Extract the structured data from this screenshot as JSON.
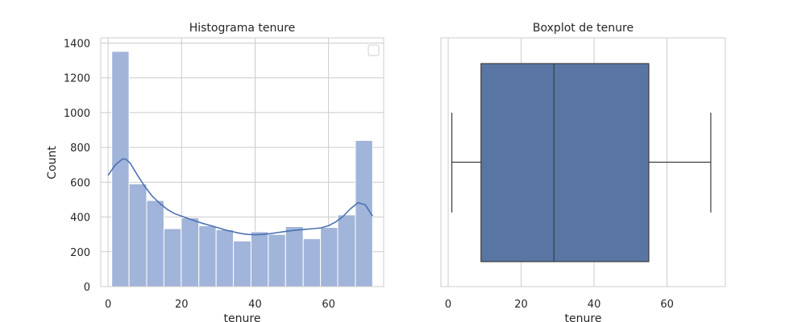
{
  "chart_data": [
    {
      "type": "bar",
      "title": "Histograma tenure",
      "xlabel": "tenure",
      "ylabel": "Count",
      "xlim": [
        -2,
        75
      ],
      "ylim": [
        0,
        1430
      ],
      "xticks": [
        0,
        20,
        40,
        60
      ],
      "yticks": [
        0,
        200,
        400,
        600,
        800,
        1000,
        1200,
        1400
      ],
      "grid": true,
      "legend": "top-right",
      "bins": [
        {
          "x0": 1.0,
          "x1": 5.7,
          "count": 1352
        },
        {
          "x0": 5.7,
          "x1": 10.5,
          "count": 590
        },
        {
          "x0": 10.5,
          "x1": 15.2,
          "count": 495
        },
        {
          "x0": 15.2,
          "x1": 19.9,
          "count": 333
        },
        {
          "x0": 19.9,
          "x1": 24.7,
          "count": 395
        },
        {
          "x0": 24.7,
          "x1": 29.4,
          "count": 350
        },
        {
          "x0": 29.4,
          "x1": 34.1,
          "count": 327
        },
        {
          "x0": 34.1,
          "x1": 38.9,
          "count": 262
        },
        {
          "x0": 38.9,
          "x1": 43.6,
          "count": 315
        },
        {
          "x0": 43.6,
          "x1": 48.3,
          "count": 300
        },
        {
          "x0": 48.3,
          "x1": 53.1,
          "count": 345
        },
        {
          "x0": 53.1,
          "x1": 57.8,
          "count": 275
        },
        {
          "x0": 57.8,
          "x1": 62.5,
          "count": 340
        },
        {
          "x0": 62.5,
          "x1": 67.3,
          "count": 412
        },
        {
          "x0": 67.3,
          "x1": 72.0,
          "count": 840
        }
      ],
      "kde": {
        "x": [
          0,
          2,
          4,
          5,
          6,
          8,
          10,
          12,
          14,
          16,
          18,
          20,
          22,
          24,
          26,
          28,
          30,
          32,
          34,
          36,
          38,
          40,
          42,
          44,
          46,
          48,
          50,
          52,
          54,
          56,
          58,
          60,
          62,
          64,
          66,
          68,
          70,
          72
        ],
        "y": [
          640,
          700,
          735,
          730,
          710,
          640,
          575,
          520,
          480,
          445,
          420,
          405,
          390,
          375,
          362,
          350,
          338,
          325,
          315,
          306,
          300,
          298,
          300,
          304,
          310,
          316,
          322,
          326,
          330,
          333,
          338,
          350,
          372,
          405,
          448,
          482,
          470,
          405
        ]
      },
      "colors": {
        "bar": "#a1b4d9",
        "bar_edge": "#ffffff",
        "kde": "#4c72b0",
        "grid": "#cccccc",
        "frame": "#cccccc"
      }
    },
    {
      "type": "boxplot",
      "title": "Boxplot de tenure",
      "xlabel": "tenure",
      "xlim": [
        -2,
        76
      ],
      "xticks": [
        0,
        20,
        40,
        60
      ],
      "grid": true,
      "box": {
        "min": 1,
        "q1": 9,
        "median": 29,
        "q3": 55,
        "max": 72
      },
      "colors": {
        "box": "#5975a4",
        "line": "#3d3d3d",
        "grid": "#cccccc",
        "frame": "#cccccc"
      }
    }
  ]
}
